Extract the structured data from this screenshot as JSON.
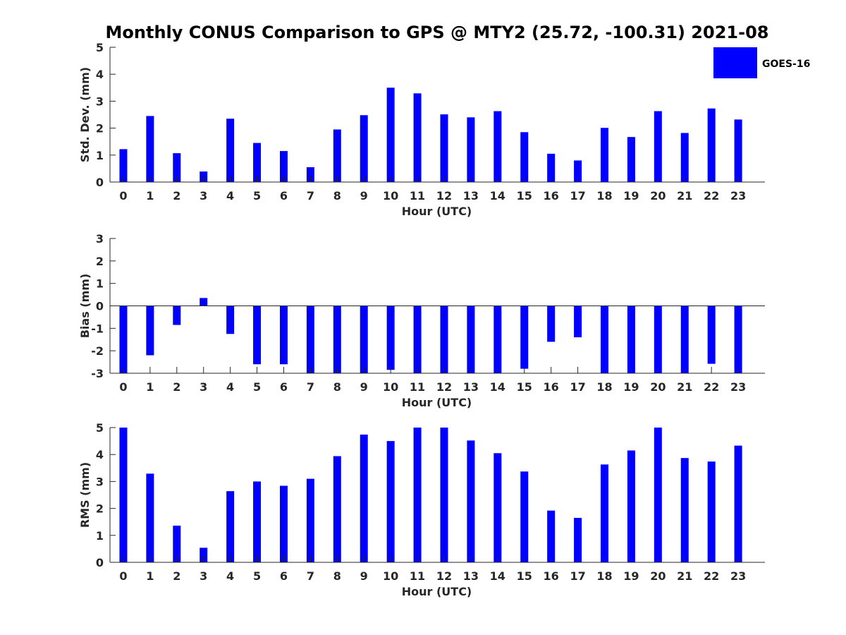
{
  "title": "Monthly CONUS Comparison to GPS @ MTY2 (25.72, -100.31) 2021-08",
  "legend": {
    "label": "GOES-16",
    "position": "top-right"
  },
  "colors": {
    "bar": "#0000ff",
    "axis": "#262626",
    "background": "#ffffff"
  },
  "chart_data": [
    {
      "type": "bar",
      "ylabel": "Std. Dev. (mm)",
      "xlabel": "Hour (UTC)",
      "ylim": [
        0,
        5
      ],
      "yticks": [
        0,
        1,
        2,
        3,
        4,
        5
      ],
      "categories": [
        "0",
        "1",
        "2",
        "3",
        "4",
        "5",
        "6",
        "7",
        "8",
        "9",
        "10",
        "11",
        "12",
        "13",
        "14",
        "15",
        "16",
        "17",
        "18",
        "19",
        "20",
        "21",
        "22",
        "23"
      ],
      "series": [
        {
          "name": "GOES-16",
          "values": [
            1.22,
            2.45,
            1.07,
            0.39,
            2.35,
            1.45,
            1.15,
            0.55,
            1.95,
            2.48,
            3.5,
            3.29,
            2.51,
            2.4,
            2.63,
            1.85,
            1.05,
            0.8,
            2.01,
            1.67,
            2.63,
            1.82,
            2.73,
            2.32
          ]
        }
      ]
    },
    {
      "type": "bar",
      "ylabel": "Bias (mm)",
      "xlabel": "Hour (UTC)",
      "ylim": [
        -3,
        3
      ],
      "yticks": [
        -3,
        -2,
        -1,
        0,
        1,
        2,
        3
      ],
      "categories": [
        "0",
        "1",
        "2",
        "3",
        "4",
        "5",
        "6",
        "7",
        "8",
        "9",
        "10",
        "11",
        "12",
        "13",
        "14",
        "15",
        "16",
        "17",
        "18",
        "19",
        "20",
        "21",
        "22",
        "23"
      ],
      "series": [
        {
          "name": "GOES-16",
          "values": [
            -3.2,
            -2.2,
            -0.85,
            0.35,
            -1.25,
            -2.6,
            -2.6,
            -3.2,
            -3.2,
            -3.2,
            -2.85,
            -3.2,
            -3.2,
            -3.2,
            -3.2,
            -2.8,
            -1.6,
            -1.4,
            -3.2,
            -3.2,
            -3.2,
            -3.2,
            -2.58,
            -3.2
          ]
        }
      ]
    },
    {
      "type": "bar",
      "ylabel": "RMS (mm)",
      "xlabel": "Hour (UTC)",
      "ylim": [
        0,
        5
      ],
      "yticks": [
        0,
        1,
        2,
        3,
        4,
        5
      ],
      "categories": [
        "0",
        "1",
        "2",
        "3",
        "4",
        "5",
        "6",
        "7",
        "8",
        "9",
        "10",
        "11",
        "12",
        "13",
        "14",
        "15",
        "16",
        "17",
        "18",
        "19",
        "20",
        "21",
        "22",
        "23"
      ],
      "series": [
        {
          "name": "GOES-16",
          "values": [
            5.2,
            3.29,
            1.36,
            0.54,
            2.64,
            3.0,
            2.84,
            3.1,
            3.94,
            4.74,
            4.5,
            5.2,
            5.2,
            4.52,
            4.05,
            3.37,
            1.92,
            1.65,
            3.63,
            4.15,
            5.2,
            3.87,
            3.74,
            4.33
          ]
        }
      ]
    }
  ]
}
